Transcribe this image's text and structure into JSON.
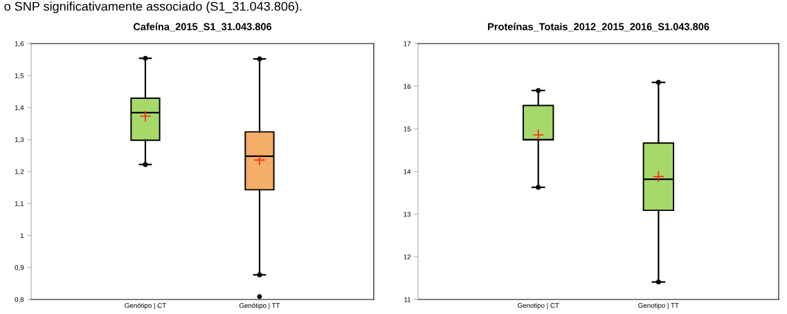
{
  "chart_data": [
    {
      "type": "box",
      "title": "Cafeína_2015_S1_31.043.806",
      "annotations": [
        "o SNP significativamente associado (S1_31.043.806)."
      ],
      "categories": [
        "Genótipo | CT",
        "Genótipo | TT"
      ],
      "colors": [
        "#a6d96a",
        "#f4ae67"
      ],
      "boxes": [
        {
          "low": 1.222,
          "q1": 1.298,
          "median": 1.384,
          "q3": 1.429,
          "high": 1.554,
          "mean": 1.373
        },
        {
          "low": 0.877,
          "q1": 1.143,
          "median": 1.248,
          "q3": 1.324,
          "high": 1.552,
          "mean": 1.236,
          "outliers": [
            0.809
          ]
        }
      ],
      "series": [
        {
          "type": "scatter",
          "color": "#000000",
          "x": [
            "Genótipo | CT",
            "Genótipo | CT",
            "Genótipo | TT",
            "Genótipo | TT"
          ],
          "values": [
            1.222,
            1.554,
            0.877,
            1.552
          ]
        }
      ],
      "marker": "circle",
      "ylim": [
        0.8,
        1.6
      ],
      "yticks": [
        {
          "value": 0.8,
          "label": "0,8"
        },
        {
          "value": 0.9,
          "label": "0,9"
        },
        {
          "value": 1,
          "label": "1"
        },
        {
          "value": 1.1,
          "label": "1,1"
        },
        {
          "value": 1.2,
          "label": "1,2"
        },
        {
          "value": 1.3,
          "label": "1,3"
        },
        {
          "value": 1.4,
          "label": "1,4"
        },
        {
          "value": 1.5,
          "label": "1,5"
        },
        {
          "value": 1.6,
          "label": "1,6"
        }
      ],
      "grid": false
    },
    {
      "type": "box",
      "title": "Proteínas_Totais_2012_2015_2016_S1.043.806",
      "categories": [
        "Genotipo | CT",
        "Genotipo | TT"
      ],
      "colors": [
        "#a6d96a",
        "#a6d96a"
      ],
      "boxes": [
        {
          "low": 13.63,
          "q1": 14.74,
          "median": 14.75,
          "q3": 15.55,
          "high": 15.9,
          "mean": 14.86
        },
        {
          "low": 11.41,
          "q1": 13.09,
          "median": 13.82,
          "q3": 14.67,
          "high": 16.09,
          "mean": 13.88
        }
      ],
      "series": [
        {
          "type": "scatter",
          "color": "#000000",
          "x": [
            "Genotipo | CT",
            "Genotipo | CT",
            "Genotipo | TT",
            "Genotipo | TT"
          ],
          "values": [
            13.63,
            15.9,
            11.41,
            16.09
          ]
        }
      ],
      "marker": "circle",
      "ylim": [
        11,
        17
      ],
      "yticks": [
        11,
        12,
        13,
        14,
        15,
        16,
        17
      ],
      "grid": false
    }
  ]
}
